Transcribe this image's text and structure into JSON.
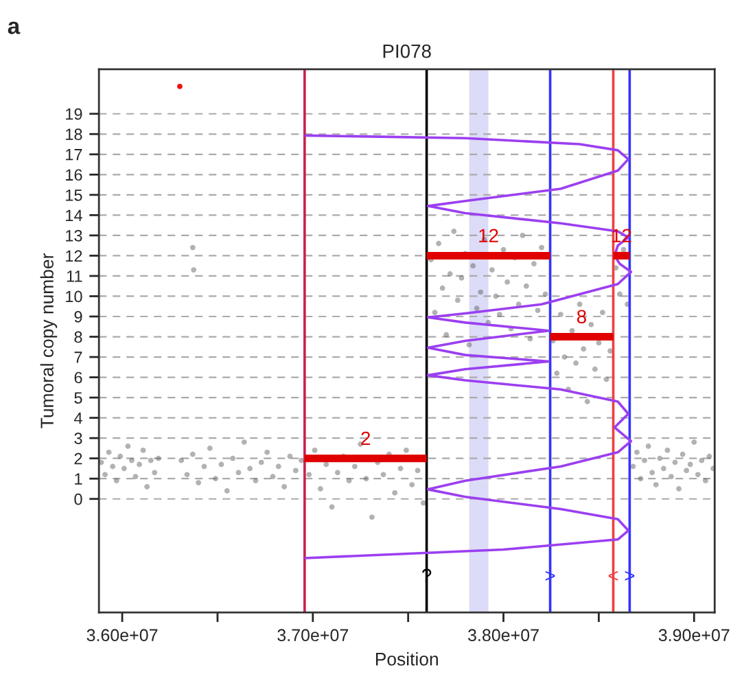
{
  "chart_data": {
    "type": "scatter",
    "title": "PI078",
    "xlabel": "Position",
    "ylabel": "Tumoral copy number",
    "xlim": [
      35878000,
      39108000
    ],
    "ylim": [
      -5.6,
      21.2
    ],
    "xticks": [
      {
        "value": 36000000,
        "label": "3.60e+07"
      },
      {
        "value": 36500000,
        "label": null
      },
      {
        "value": 37000000,
        "label": "3.70e+07"
      },
      {
        "value": 37500000,
        "label": null
      },
      {
        "value": 38000000,
        "label": "3.80e+07"
      },
      {
        "value": 38500000,
        "label": null
      },
      {
        "value": 39000000,
        "label": "3.90e+07"
      }
    ],
    "yticks": [
      0,
      1,
      2,
      3,
      4,
      5,
      6,
      7,
      8,
      9,
      10,
      11,
      12,
      13,
      14,
      15,
      16,
      17,
      18,
      19
    ],
    "grid": "y",
    "bands": [
      {
        "axis": "x",
        "from": 37820000,
        "to": 37921000,
        "color": "#dcdcf8"
      }
    ],
    "ref_lines": [
      {
        "axis": "x",
        "value": 36957000,
        "color": "#c8204c"
      },
      {
        "axis": "x",
        "value": 37597000,
        "color": "#000000"
      },
      {
        "axis": "x",
        "value": 38245000,
        "color": "#3333ff"
      },
      {
        "axis": "x",
        "value": 38576000,
        "color": "#f04040"
      },
      {
        "axis": "x",
        "value": 38662000,
        "color": "#3333ff"
      }
    ],
    "series": [
      {
        "color": "#555555",
        "x": [
          35890000,
          35910000,
          35930000,
          35950000,
          35970000,
          35990000,
          36010000,
          36030000,
          36050000,
          36070000,
          36090000,
          36110000,
          36130000,
          36150000,
          36170000,
          36190000,
          36370000,
          36375000,
          36310000,
          36340000,
          36370000,
          36400000,
          36430000,
          36460000,
          36490000,
          36520000,
          36550000,
          36580000,
          36610000,
          36640000,
          36670000,
          36700000,
          36730000,
          36760000,
          36790000,
          36820000,
          36850000,
          36880000,
          36910000,
          36940000,
          36980000,
          37010000,
          37040000,
          37070000,
          37100000,
          37130000,
          37160000,
          37190000,
          37220000,
          37250000,
          37280000,
          37310000,
          37340000,
          37370000,
          37400000,
          37430000,
          37460000,
          37490000,
          37520000,
          37550000,
          37580000,
          37620000,
          37640000,
          37660000,
          37680000,
          37700000,
          37720000,
          37740000,
          37760000,
          37780000,
          37800000,
          37820000,
          37840000,
          37860000,
          37880000,
          37900000,
          37920000,
          37940000,
          37960000,
          37980000,
          38000000,
          38020000,
          38040000,
          38060000,
          38080000,
          38100000,
          38120000,
          38140000,
          38160000,
          38180000,
          38200000,
          38220000,
          38260000,
          38280000,
          38300000,
          38320000,
          38340000,
          38360000,
          38380000,
          38400000,
          38420000,
          38440000,
          38460000,
          38480000,
          38500000,
          38520000,
          38540000,
          38560000,
          38590000,
          38610000,
          38630000,
          38650000,
          38680000,
          38700000,
          38720000,
          38740000,
          38760000,
          38780000,
          38800000,
          38820000,
          38840000,
          38860000,
          38880000,
          38900000,
          38920000,
          38940000,
          38960000,
          38980000,
          39000000,
          39020000,
          39040000,
          39060000,
          39080000,
          39100000
        ],
        "values": [
          1.8,
          1.2,
          2.3,
          1.6,
          0.9,
          2.1,
          1.5,
          2.6,
          1.9,
          1.1,
          1.7,
          2.4,
          0.6,
          1.9,
          1.3,
          2.0,
          12.4,
          11.3,
          1.9,
          1.2,
          2.2,
          0.8,
          1.6,
          2.5,
          1.0,
          1.7,
          0.4,
          2.0,
          1.3,
          2.8,
          1.5,
          0.9,
          1.8,
          2.3,
          1.1,
          1.6,
          0.6,
          2.1,
          1.4,
          1.9,
          1.2,
          2.4,
          0.5,
          1.7,
          -0.4,
          1.3,
          2.1,
          0.9,
          1.6,
          2.7,
          1.0,
          -0.9,
          1.8,
          1.2,
          2.2,
          0.3,
          1.5,
          2.4,
          0.7,
          1.4,
          -0.2,
          11.8,
          9.2,
          12.6,
          10.4,
          8.1,
          11.1,
          13.2,
          9.8,
          10.9,
          12.1,
          7.6,
          11.5,
          9.4,
          10.2,
          12.8,
          8.7,
          11.3,
          10.0,
          9.1,
          12.3,
          10.7,
          8.4,
          11.9,
          9.6,
          13.0,
          10.5,
          7.9,
          11.6,
          9.3,
          12.4,
          10.1,
          7.8,
          6.2,
          9.1,
          7.0,
          5.4,
          8.3,
          6.7,
          9.6,
          7.4,
          4.8,
          8.6,
          6.4,
          7.7,
          9.2,
          5.9,
          7.3,
          11.4,
          10.1,
          12.3,
          9.6,
          1.6,
          2.3,
          1.0,
          1.9,
          2.6,
          1.3,
          0.7,
          2.0,
          1.5,
          2.4,
          1.1,
          1.8,
          0.5,
          2.2,
          1.4,
          1.7,
          2.8,
          1.2,
          1.9,
          0.9,
          2.1,
          1.5
        ]
      },
      {
        "type": "scatter",
        "color": "#ee1111",
        "x": [
          36302000
        ],
        "values": [
          20.35
        ]
      },
      {
        "type": "line",
        "color": "#9b3ff0",
        "x": [
          36957000,
          37800000,
          38400000,
          38600000,
          38655000,
          38600000,
          38300000,
          37800000,
          37604000,
          37800000,
          38300000,
          38600000,
          38655000,
          38600000,
          38583000,
          38610000,
          38669000,
          38600000,
          38200000,
          37800000,
          37604000,
          37800000,
          38237000,
          37800000,
          37604000,
          37800000,
          38237000,
          37800000,
          37604000,
          37800000,
          38300000,
          38600000,
          38655000,
          38583000,
          38669000,
          38600000,
          38300000,
          37800000,
          37604000,
          37800000,
          38300000,
          38600000,
          38655000,
          38600000,
          38000000,
          36957000
        ],
        "values": [
          17.93,
          17.8,
          17.5,
          17.2,
          16.76,
          16.2,
          15.3,
          14.7,
          14.45,
          14.1,
          13.6,
          13.2,
          12.9,
          12.5,
          12.0,
          11.6,
          11.2,
          10.6,
          9.6,
          9.15,
          8.96,
          8.7,
          8.3,
          7.8,
          7.46,
          7.1,
          6.78,
          6.4,
          6.1,
          5.85,
          5.4,
          4.8,
          4.2,
          3.53,
          2.85,
          2.3,
          1.6,
          0.9,
          0.47,
          0.1,
          -0.5,
          -1.0,
          -1.56,
          -2.0,
          -2.5,
          -2.92
        ]
      },
      {
        "type": "line",
        "color": "#e00000",
        "x": [
          36957000,
          37597000
        ],
        "values": [
          2,
          2
        ]
      },
      {
        "type": "line",
        "color": "#e00000",
        "x": [
          37597000,
          38245000
        ],
        "values": [
          12,
          12
        ]
      },
      {
        "type": "line",
        "color": "#e00000",
        "x": [
          38245000,
          38576000
        ],
        "values": [
          8,
          8
        ]
      },
      {
        "type": "line",
        "color": "#e00000",
        "x": [
          38576000,
          38662000
        ],
        "values": [
          12,
          12
        ]
      }
    ],
    "annotations": [
      "a",
      {
        "text": "2",
        "x": 37277000,
        "y": 2
      },
      {
        "text": "12",
        "x": 37921000,
        "y": 12
      },
      {
        "text": "8",
        "x": 38410000,
        "y": 8
      },
      {
        "text": "12",
        "x": 38619000,
        "y": 12
      },
      {
        "text": "?",
        "x": 37597000,
        "y": -4.3
      },
      {
        "text": ">",
        "x": 38245000,
        "y": -4.3
      },
      {
        "text": "<",
        "x": 38576000,
        "y": -4.3
      },
      {
        "text": ">",
        "x": 38662000,
        "y": -4.3
      }
    ]
  }
}
